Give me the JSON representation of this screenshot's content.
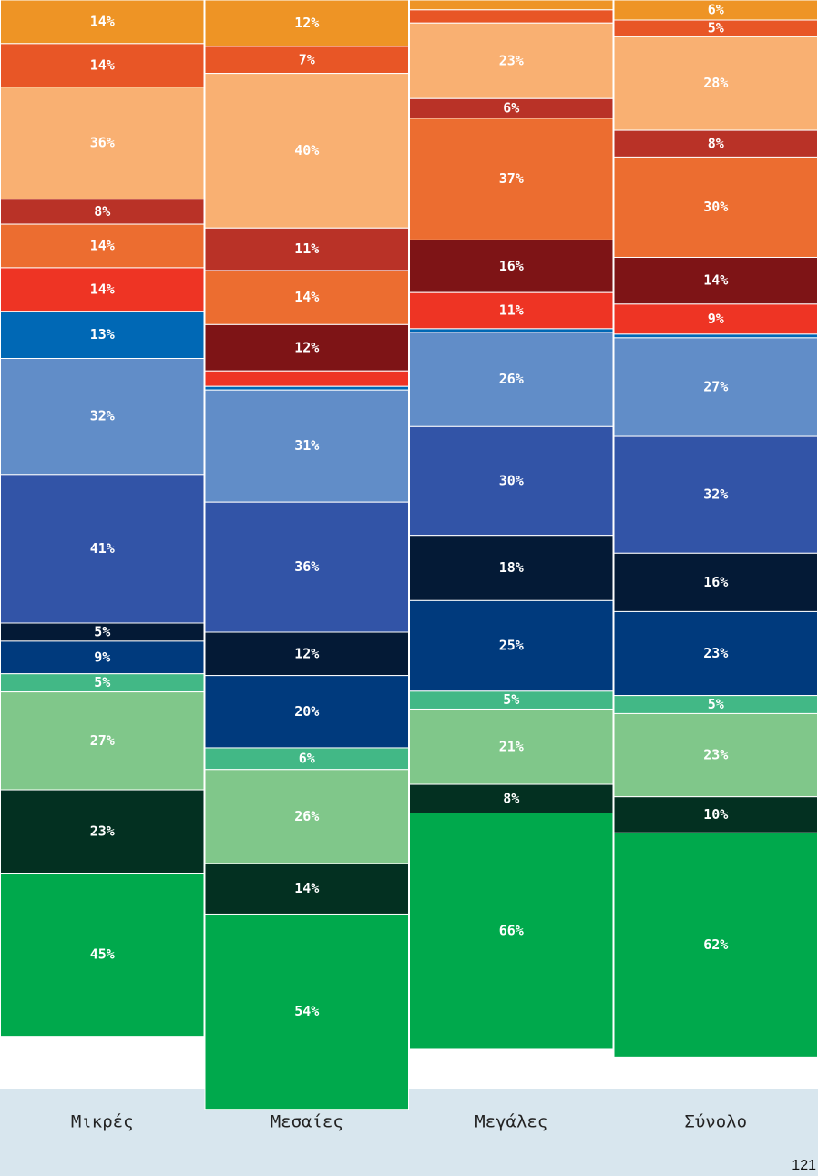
{
  "chart_data": {
    "type": "bar",
    "stacked": true,
    "categories": [
      "Μικρές",
      "Μεσαίες",
      "Μεγάλες",
      "Σύνολο"
    ],
    "groups": [
      {
        "share": [
          28.6,
          35.5,
          30.2,
          30.7
        ],
        "series": [
          {
            "color": "#ee9425",
            "values": [
              14,
              12,
              3,
              6
            ],
            "labels": [
              "14%",
              "12%",
              "",
              "6%"
            ]
          },
          {
            "color": "#e85626",
            "values": [
              14,
              7,
              4,
              5
            ],
            "labels": [
              "14%",
              "7%",
              "",
              "5%"
            ]
          },
          {
            "color": "#f9b072",
            "values": [
              36,
              40,
              23,
              28
            ],
            "labels": [
              "36%",
              "40%",
              "23%",
              "28%"
            ]
          },
          {
            "color": "#b93227",
            "values": [
              8,
              11,
              6,
              8
            ],
            "labels": [
              "8%",
              "11%",
              "6%",
              "8%"
            ]
          },
          {
            "color": "#ec6d30",
            "values": [
              14,
              14,
              37,
              30
            ],
            "labels": [
              "14%",
              "14%",
              "37%",
              "30%"
            ]
          },
          {
            "color": "#7e1416",
            "values": [
              0,
              12,
              16,
              14
            ],
            "labels": [
              "",
              "12%",
              "16%",
              "14%"
            ]
          },
          {
            "color": "#ee3424",
            "values": [
              14,
              4,
              11,
              9
            ],
            "labels": [
              "14%",
              "",
              "11%",
              "9%"
            ]
          }
        ]
      },
      {
        "share": [
          33.3,
          33.2,
          33.3,
          33.2
        ],
        "series": [
          {
            "color": "#0068b5",
            "values": [
              13,
              1,
              1,
              1
            ],
            "labels": [
              "13%",
              "",
              "",
              ""
            ]
          },
          {
            "color": "#618dc8",
            "values": [
              32,
              31,
              26,
              27
            ],
            "labels": [
              "32%",
              "31%",
              "26%",
              "27%"
            ]
          },
          {
            "color": "#3254a7",
            "values": [
              41,
              36,
              30,
              32
            ],
            "labels": [
              "41%",
              "36%",
              "30%",
              "32%"
            ]
          },
          {
            "color": "#041a36",
            "values": [
              5,
              12,
              18,
              16
            ],
            "labels": [
              "5%",
              "12%",
              "18%",
              "16%"
            ]
          },
          {
            "color": "#003a7d",
            "values": [
              9,
              20,
              25,
              23
            ],
            "labels": [
              "9%",
              "20%",
              "25%",
              "23%"
            ]
          }
        ]
      },
      {
        "share": [
          33.3,
          33.2,
          32.9,
          33.2
        ],
        "series": [
          {
            "color": "#42b886",
            "values": [
              5,
              6,
              5,
              5
            ],
            "labels": [
              "5%",
              "6%",
              "5%",
              "5%"
            ]
          },
          {
            "color": "#80c78a",
            "values": [
              27,
              26,
              21,
              23
            ],
            "labels": [
              "27%",
              "26%",
              "21%",
              "23%"
            ]
          },
          {
            "color": "#033021",
            "values": [
              23,
              14,
              8,
              10
            ],
            "labels": [
              "23%",
              "14%",
              "8%",
              "10%"
            ]
          },
          {
            "color": "#00a94c",
            "values": [
              45,
              54,
              66,
              62
            ],
            "labels": [
              "45%",
              "54%",
              "66%",
              "62%"
            ]
          }
        ]
      }
    ]
  },
  "page": {
    "number": "121"
  }
}
